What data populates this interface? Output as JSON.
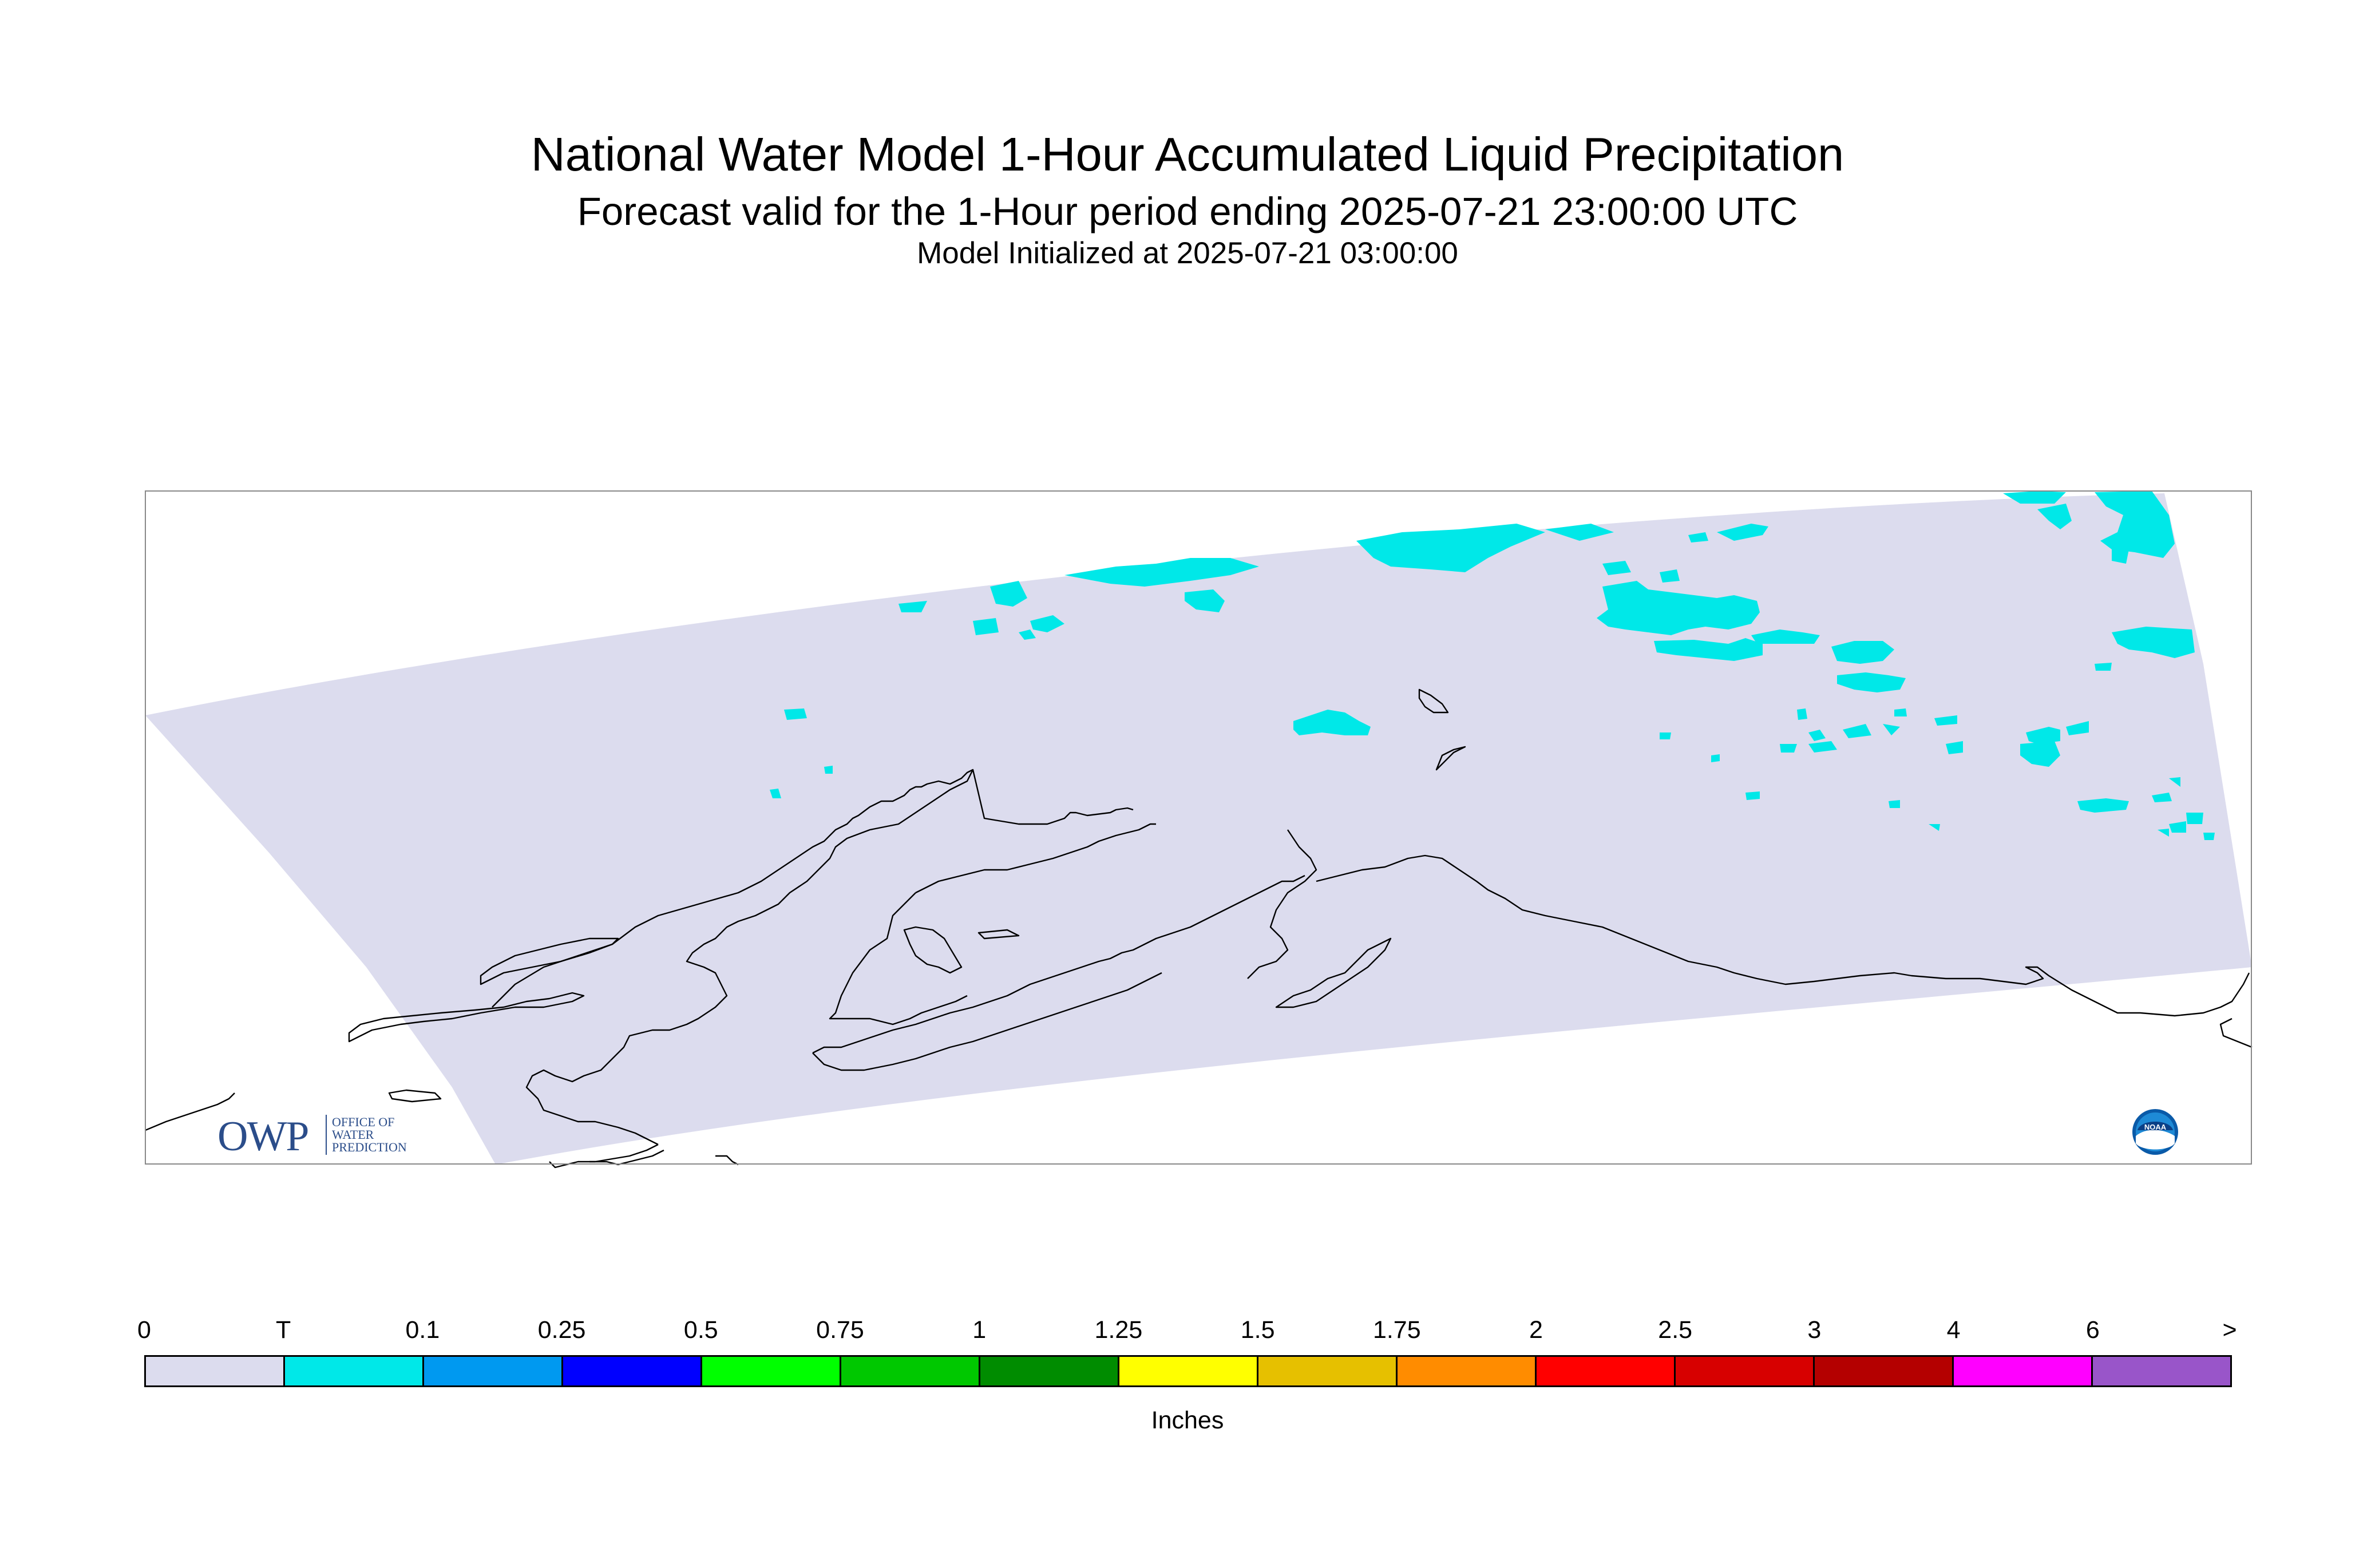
{
  "title": {
    "main": "National Water Model 1-Hour Accumulated Liquid Precipitation",
    "sub": "Forecast valid for the 1-Hour period ending 2025-07-21 23:00:00 UTC",
    "init": "Model Initialized at 2025-07-21 03:00:00"
  },
  "logos": {
    "owp_mark": "OWP",
    "owp_text_lines": [
      "OFFICE OF",
      "WATER",
      "PREDICTION"
    ],
    "noaa_mark": "NOAA"
  },
  "colors": {
    "domain_fill": "#dcdcee",
    "precip_trace": "#00e8e8",
    "coastline": "#000000",
    "frame": "#888888"
  },
  "legend": {
    "unit": "Inches",
    "ticks": [
      "0",
      "T",
      "0.1",
      "0.25",
      "0.5",
      "0.75",
      "1",
      "1.25",
      "1.5",
      "1.75",
      "2",
      "2.5",
      "3",
      "4",
      "6",
      ">"
    ],
    "colors": [
      "#dcdcee",
      "#00e8e8",
      "#0099f0",
      "#0000ff",
      "#00ff00",
      "#00c800",
      "#008c00",
      "#ffff00",
      "#e6c000",
      "#ff8c00",
      "#ff0000",
      "#d70000",
      "#b40000",
      "#ff00ff",
      "#9955c9"
    ]
  }
}
